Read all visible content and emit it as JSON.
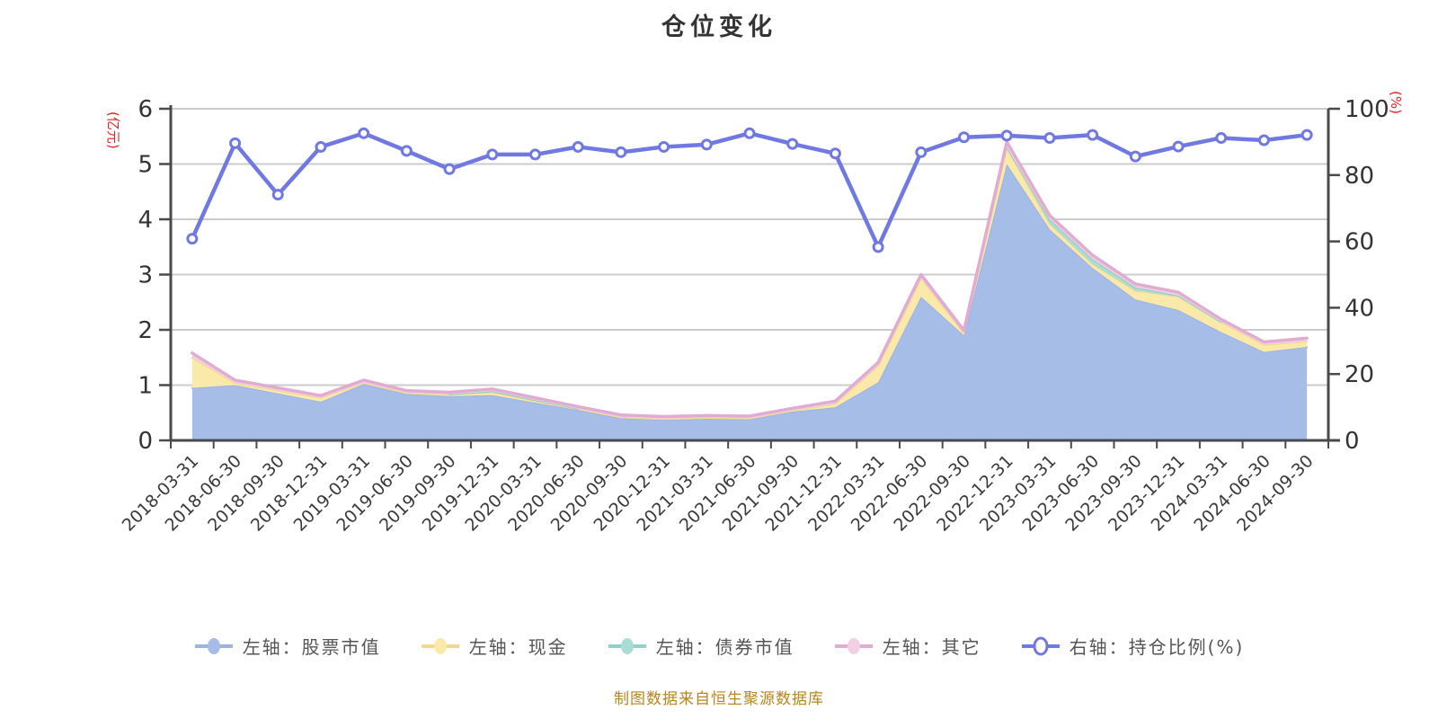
{
  "chart_data": {
    "type": "combo-stacked-area-line",
    "title": "仓位变化",
    "footer": "制图数据来自恒生聚源数据库",
    "footer_color": "#b8861b",
    "grid_color": "#cccccc",
    "axis_color": "#4a4a4a",
    "tick_label_color": "#333333",
    "x_label_color": "#3a3a3a",
    "left_axis": {
      "name": "(亿元)",
      "name_color": "#e02222",
      "min": 0,
      "max": 6,
      "tick_step": 1
    },
    "right_axis": {
      "name": "(%)",
      "name_color": "#e02222",
      "min": 0,
      "max": 100,
      "tick_step": 20
    },
    "categories": [
      "2018-03-31",
      "2018-06-30",
      "2018-09-30",
      "2018-12-31",
      "2019-03-31",
      "2019-06-30",
      "2019-09-30",
      "2019-12-31",
      "2020-03-31",
      "2020-06-30",
      "2020-09-30",
      "2020-12-31",
      "2021-03-31",
      "2021-06-30",
      "2021-09-30",
      "2021-12-31",
      "2022-03-31",
      "2022-06-30",
      "2022-09-30",
      "2022-12-31",
      "2023-03-31",
      "2023-06-30",
      "2023-09-30",
      "2023-12-31",
      "2024-03-31",
      "2024-06-30",
      "2024-09-30"
    ],
    "series": [
      {
        "name": "左轴：股票市值",
        "type": "area",
        "stack": "total",
        "axis": "left",
        "color": "#a6bee7",
        "line_color": "#9bb4e0",
        "values": [
          0.95,
          1.0,
          0.85,
          0.7,
          1.02,
          0.84,
          0.8,
          0.82,
          0.68,
          0.55,
          0.4,
          0.37,
          0.39,
          0.38,
          0.52,
          0.6,
          1.05,
          2.6,
          1.9,
          5.0,
          3.82,
          3.12,
          2.55,
          2.36,
          1.96,
          1.6,
          1.69
        ]
      },
      {
        "name": "左轴：现金",
        "type": "area",
        "stack": "total",
        "axis": "left",
        "color": "#fae9a9",
        "line_color": "#f0d98d",
        "values": [
          0.55,
          0.04,
          0.05,
          0.07,
          0.02,
          0.02,
          0.03,
          0.05,
          0.03,
          0.02,
          0.02,
          0.02,
          0.02,
          0.02,
          0.02,
          0.06,
          0.3,
          0.33,
          0.04,
          0.3,
          0.1,
          0.07,
          0.16,
          0.24,
          0.18,
          0.13,
          0.1
        ]
      },
      {
        "name": "左轴：债券市值",
        "type": "area",
        "stack": "total",
        "axis": "left",
        "color": "#a9dcd4",
        "line_color": "#8ed1c7",
        "values": [
          0,
          0,
          0,
          0,
          0,
          0,
          0,
          0.02,
          0.02,
          0,
          0,
          0,
          0,
          0,
          0,
          0,
          0,
          0,
          0,
          0,
          0.08,
          0.09,
          0.06,
          0.02,
          0,
          0,
          0
        ]
      },
      {
        "name": "左轴：其它",
        "type": "area",
        "stack": "total",
        "axis": "left",
        "color": "#f2d0e4",
        "line_color": "#e2abd2",
        "values": [
          0.08,
          0.05,
          0.05,
          0.04,
          0.05,
          0.04,
          0.04,
          0.04,
          0.04,
          0.04,
          0.04,
          0.04,
          0.04,
          0.04,
          0.04,
          0.05,
          0.06,
          0.07,
          0.05,
          0.1,
          0.07,
          0.07,
          0.06,
          0.06,
          0.05,
          0.05,
          0.06
        ]
      },
      {
        "name": "右轴：持仓比例(%)",
        "type": "line",
        "axis": "right",
        "color": "#ffffff",
        "line_color": "#7079e2",
        "marker": "white-circle",
        "values": [
          60.8,
          89.6,
          74.1,
          88.5,
          92.6,
          87.3,
          81.8,
          86.2,
          86.2,
          88.5,
          86.9,
          88.5,
          89.2,
          92.6,
          89.4,
          86.5,
          58.3,
          86.9,
          91.4,
          91.9,
          91.2,
          92.1,
          85.6,
          88.6,
          91.2,
          90.5,
          92.1
        ]
      }
    ]
  }
}
